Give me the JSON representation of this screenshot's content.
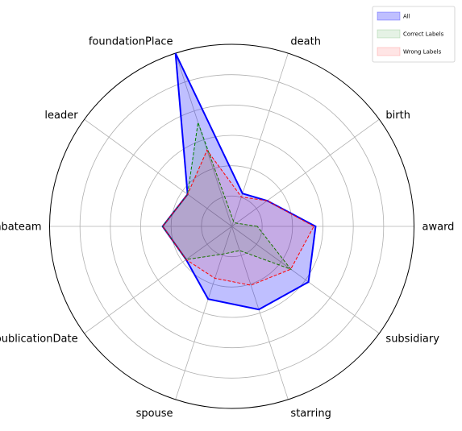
{
  "chart_data": {
    "type": "radar",
    "title": "",
    "categories": [
      "award",
      "birth",
      "death",
      "foundationPlace",
      "leader",
      "nbateam",
      "publicationDate",
      "spouse",
      "starring",
      "subsidiary"
    ],
    "rlim": [
      0,
      1
    ],
    "grid": true,
    "ring_count": 5,
    "legend_position": "top-right",
    "series": [
      {
        "name": "All",
        "values": [
          0.46,
          0.24,
          0.19,
          1.0,
          0.3,
          0.38,
          0.31,
          0.42,
          0.48,
          0.52
        ],
        "line_color": "#0000ff",
        "line_style": "solid",
        "fill_color": "#0000ff",
        "fill_opacity": 0.25
      },
      {
        "name": "Correct Labels",
        "values": [
          0.14,
          0.03,
          0.03,
          0.6,
          0.3,
          0.38,
          0.31,
          0.16,
          0.14,
          0.4
        ],
        "line_color": "#008000",
        "line_style": "dashed",
        "fill_color": "#008000",
        "fill_opacity": 0.1
      },
      {
        "name": "Wrong  Labels",
        "values": [
          0.45,
          0.24,
          0.17,
          0.44,
          0.3,
          0.38,
          0.31,
          0.3,
          0.34,
          0.4
        ],
        "line_color": "#ff0000",
        "line_style": "dashed",
        "fill_color": "#ff0000",
        "fill_opacity": 0.1
      }
    ]
  }
}
